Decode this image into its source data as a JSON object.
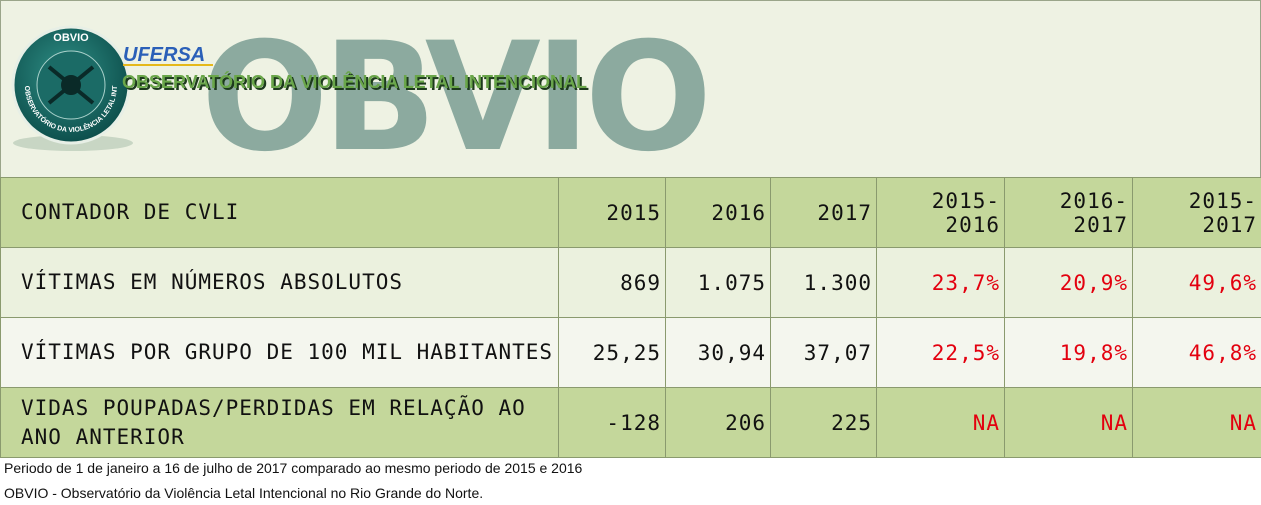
{
  "header": {
    "logo_badge": "OBVIO",
    "logo_ring": "OBSERVATÓRIO DA VIOLÊNCIA LETAL INTENCIONAL",
    "watermark": "OBVIO",
    "institution": "UFERSA",
    "subtitle": "OBSERVATÓRIO DA VIOLÊNCIA LETAL INTENCIONAL"
  },
  "table": {
    "header": [
      "CONTADOR DE CVLI",
      "2015",
      "2016",
      "2017",
      "2015-2016",
      "2016-2017",
      "2015-2017"
    ],
    "rows": [
      [
        "VÍTIMAS EM NÚMEROS ABSOLUTOS",
        "869",
        "1.075",
        "1.300",
        "23,7%",
        "20,9%",
        "49,6%"
      ],
      [
        "VÍTIMAS POR GRUPO DE 100 MIL HABITANTES",
        "25,25",
        "30,94",
        "37,07",
        "22,5%",
        "19,8%",
        "46,8%"
      ],
      [
        "VIDAS POUPADAS/PERDIDAS EM RELAÇÃO AO ANO ANTERIOR",
        "-128",
        "206",
        "225",
        "NA",
        "NA",
        "NA"
      ]
    ]
  },
  "notes": [
    "Periodo de 1 de janeiro a 16 de julho de 2017 comparado ao mesmo periodo de 2015 e 2016",
    "OBVIO - Observatório da Violência Letal Intencional no Rio Grande do Norte."
  ]
}
